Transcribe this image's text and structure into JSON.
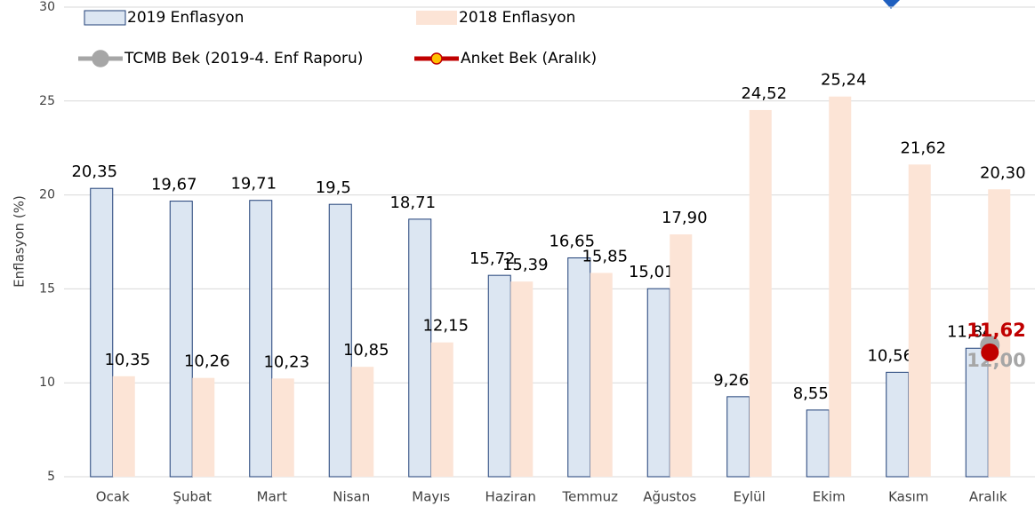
{
  "chart_data": {
    "type": "bar",
    "y_label": "Enflasyon (%)",
    "categories": [
      "Ocak",
      "Şubat",
      "Mart",
      "Nisan",
      "Mayıs",
      "Haziran",
      "Temmuz",
      "Ağustos",
      "Eylül",
      "Ekim",
      "Kasım",
      "Aralık"
    ],
    "series": [
      {
        "name": "2019 Enflasyon",
        "color": "#dce6f2",
        "edge_color": "#1f3f77",
        "kind": "bar",
        "values": [
          20.35,
          19.67,
          19.71,
          19.5,
          18.71,
          15.72,
          16.65,
          15.01,
          9.26,
          8.55,
          10.56,
          11.84
        ],
        "value_labels": [
          "20,35",
          "19,67",
          "19,71",
          "19,5",
          "18,71",
          "15,72",
          "16,65",
          "15,01",
          "9,26",
          "8,55",
          "10,56",
          "11,84"
        ]
      },
      {
        "name": "2018 Enflasyon",
        "color": "#fce4d6",
        "kind": "bar",
        "values": [
          10.35,
          10.26,
          10.23,
          10.85,
          12.15,
          15.39,
          15.85,
          17.9,
          24.52,
          25.24,
          21.62,
          20.3
        ],
        "value_labels": [
          "10,35",
          "10,26",
          "10,23",
          "10,85",
          "12,15",
          "15,39",
          "15,85",
          "17,90",
          "24,52",
          "25,24",
          "21,62",
          "20,30"
        ]
      },
      {
        "name": "TCMB Bek (2019-4. Enf Raporu)",
        "color": "#a6a6a6",
        "kind": "point",
        "values": [
          null,
          null,
          null,
          null,
          null,
          null,
          null,
          null,
          null,
          null,
          null,
          12.0
        ],
        "value_labels": [
          null,
          null,
          null,
          null,
          null,
          null,
          null,
          null,
          null,
          null,
          null,
          "12,00"
        ]
      },
      {
        "name": "Anket Bek (Aralık)",
        "color": "#c00000",
        "marker_color": "#ffc000",
        "kind": "point",
        "values": [
          null,
          null,
          null,
          null,
          null,
          null,
          null,
          null,
          null,
          null,
          null,
          11.62
        ],
        "value_labels": [
          null,
          null,
          null,
          null,
          null,
          null,
          null,
          null,
          null,
          null,
          null,
          "11,62"
        ]
      }
    ],
    "ylim": [
      5,
      30
    ],
    "yticks": [
      5,
      10,
      15,
      20,
      25,
      30
    ],
    "grid": true
  }
}
